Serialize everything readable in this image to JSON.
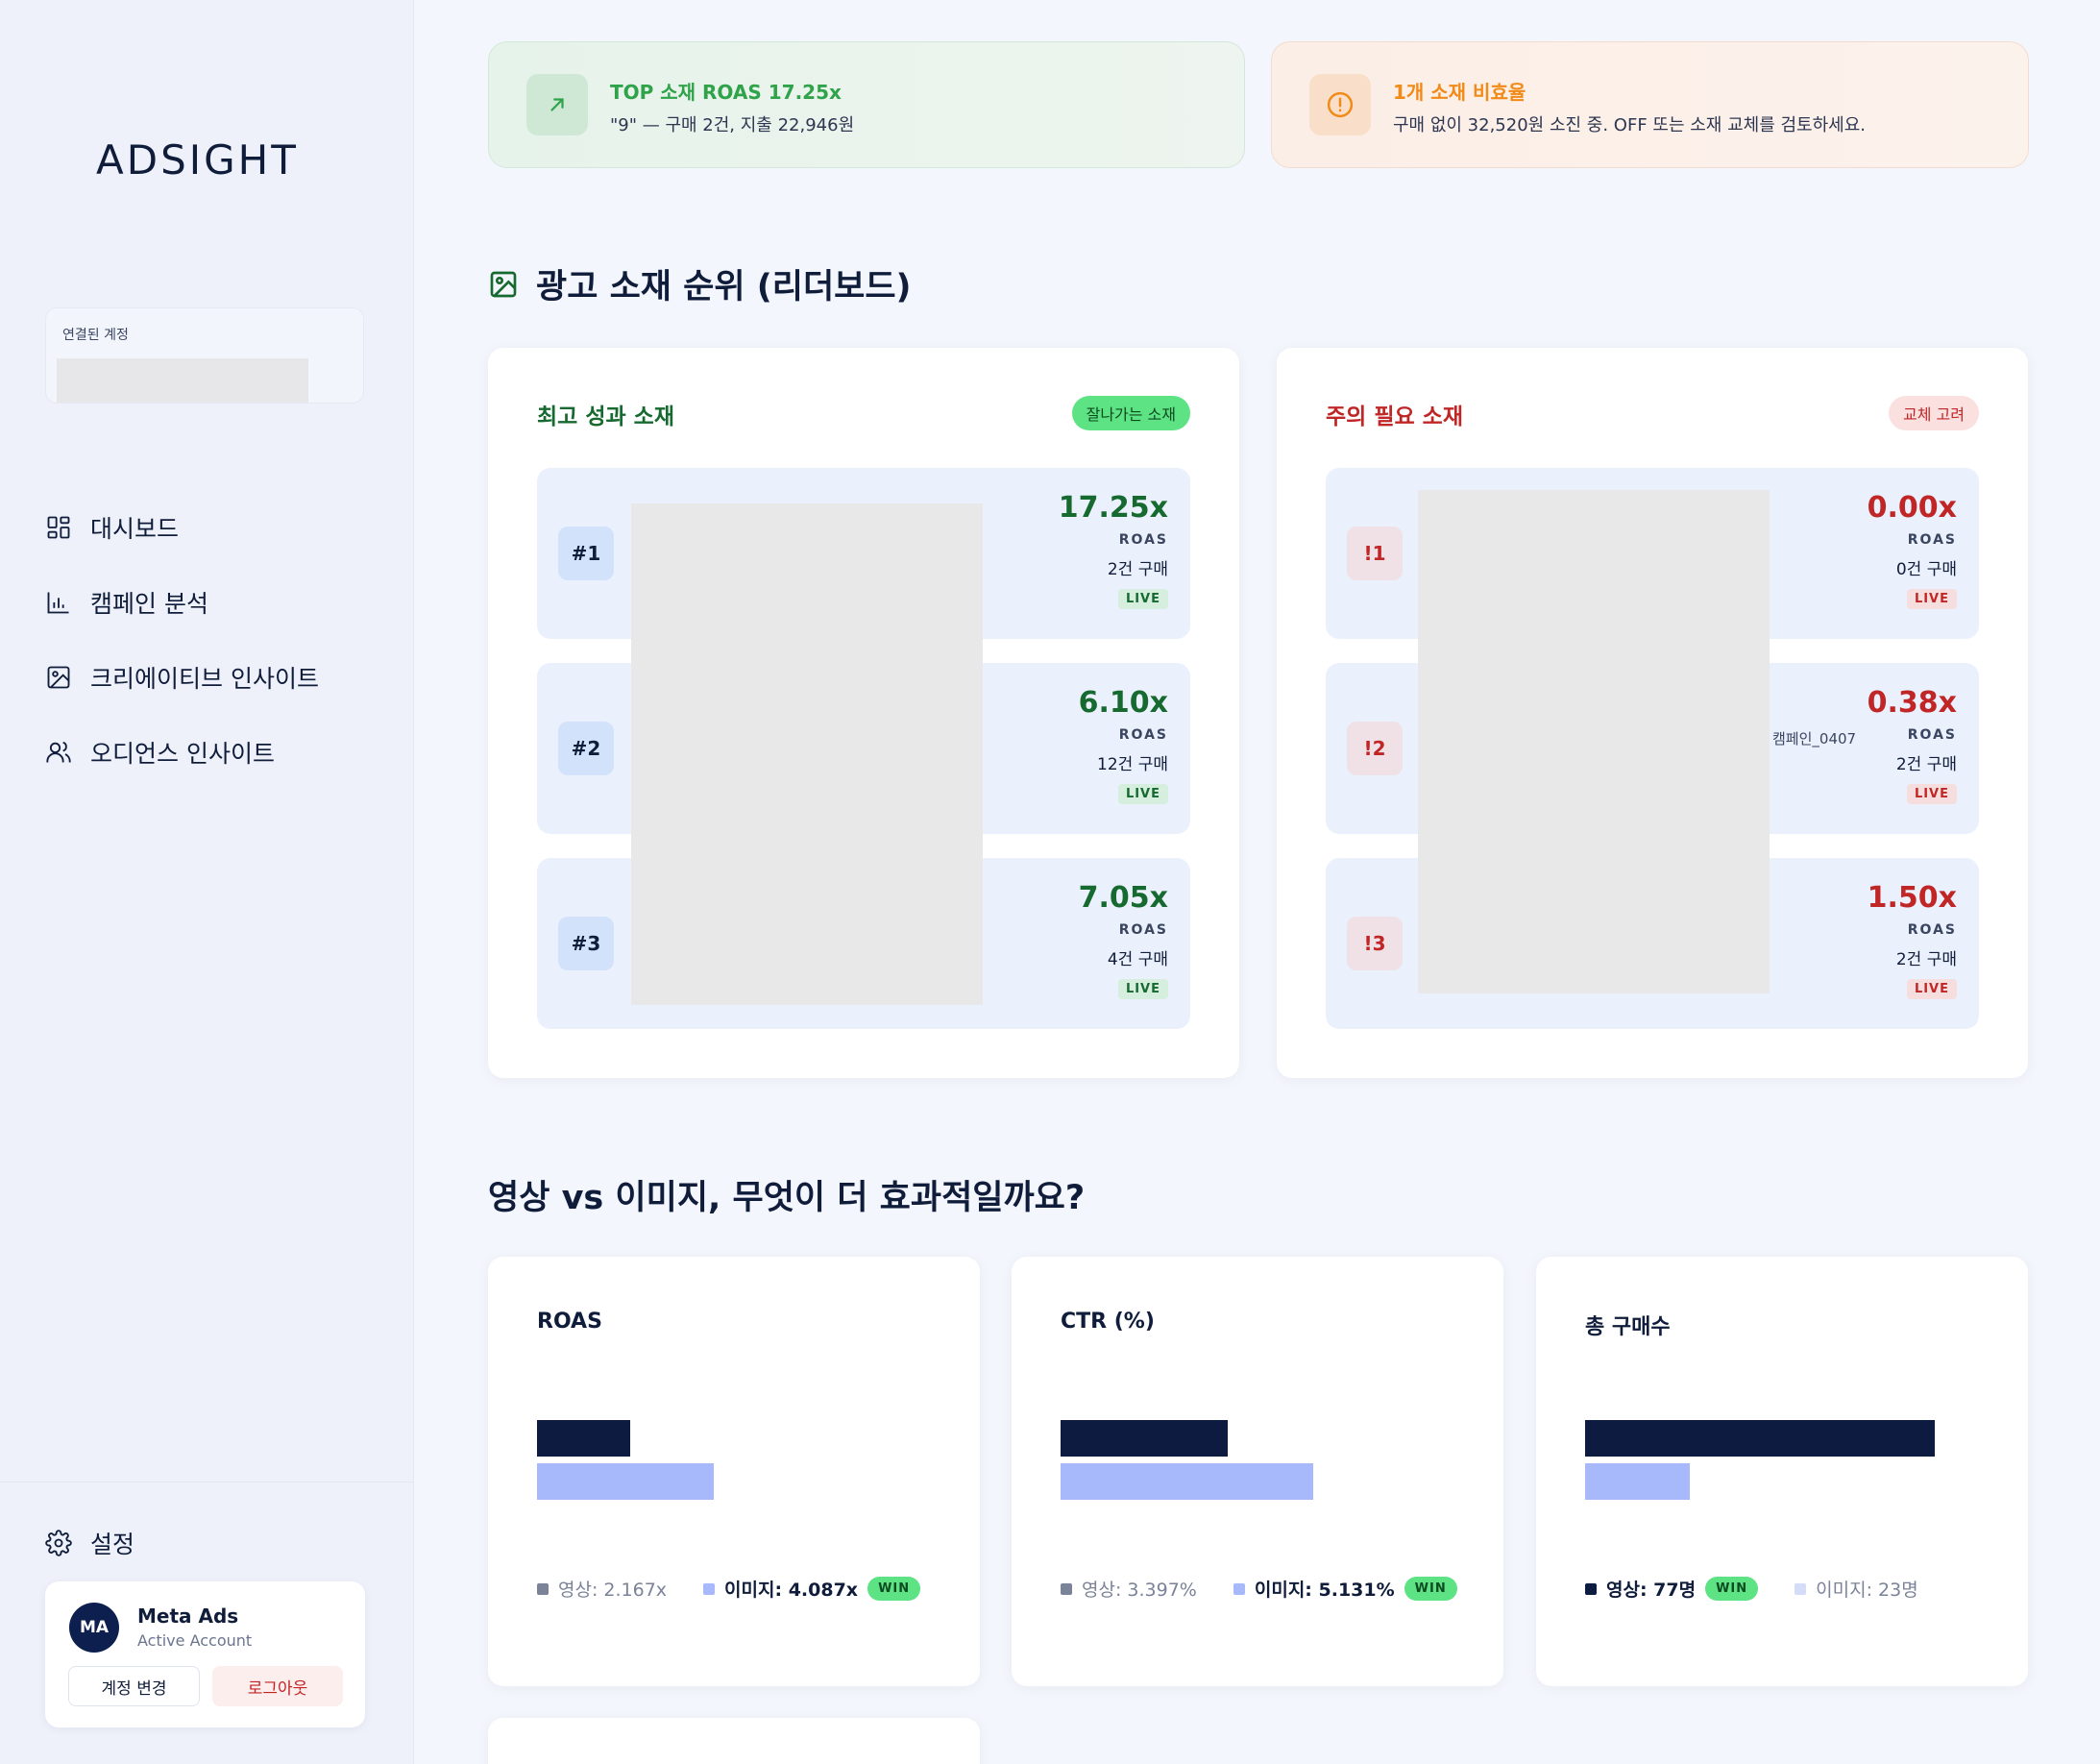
{
  "sidebar": {
    "logo": "ADSIGHT",
    "account_label": "연결된 계정",
    "nav": [
      {
        "icon": "dashboard-grid-icon",
        "label": "대시보드"
      },
      {
        "icon": "bar-chart-icon",
        "label": "캠페인 분석"
      },
      {
        "icon": "image-icon",
        "label": "크리에이티브 인사이트"
      },
      {
        "icon": "users-icon",
        "label": "오디언스 인사이트"
      }
    ],
    "settings_label": "설정",
    "user": {
      "initials": "MA",
      "name": "Meta Ads",
      "status": "Active Account",
      "switch_label": "계정 변경",
      "logout_label": "로그아웃"
    }
  },
  "alerts": {
    "top": {
      "title": "TOP 소재 ROAS 17.25x",
      "desc": "\"9\" — 구매 2건, 지출 22,946원"
    },
    "inefficient": {
      "title": "1개 소재 비효율",
      "desc": "구매 없이 32,520원 소진 중. OFF 또는 소재 교체를 검토하세요."
    }
  },
  "leaderboard": {
    "title": "광고 소재 순위 (리더보드)",
    "best": {
      "title": "최고 성과 소재",
      "badge": "잘나가는 소재",
      "rows": [
        {
          "rank": "#1",
          "roas": "17.25x",
          "label": "ROAS",
          "purchases": "2건 구매",
          "status": "LIVE"
        },
        {
          "rank": "#2",
          "roas": "6.10x",
          "label": "ROAS",
          "purchases": "12건 구매",
          "status": "LIVE"
        },
        {
          "rank": "#3",
          "roas": "7.05x",
          "label": "ROAS",
          "purchases": "4건 구매",
          "status": "LIVE"
        }
      ]
    },
    "worst": {
      "title": "주의 필요 소재",
      "badge": "교체 고려",
      "rows": [
        {
          "rank": "!1",
          "roas": "0.00x",
          "label": "ROAS",
          "purchases": "0건 구매",
          "status": "LIVE",
          "campaign": ""
        },
        {
          "rank": "!2",
          "roas": "0.38x",
          "label": "ROAS",
          "purchases": "2건 구매",
          "status": "LIVE",
          "campaign": "캠페인_0407"
        },
        {
          "rank": "!3",
          "roas": "1.50x",
          "label": "ROAS",
          "purchases": "2건 구매",
          "status": "LIVE",
          "campaign": ""
        }
      ]
    }
  },
  "compare": {
    "title": "영상 vs 이미지, 무엇이 더 효과적일까요?",
    "win_label": "WIN",
    "cards": [
      {
        "title": "ROAS",
        "video_value": 2.167,
        "image_value": 4.087,
        "video_text": "영상: 2.167x",
        "image_text": "이미지: 4.087x",
        "winner": "image"
      },
      {
        "title": "CTR (%)",
        "video_value": 3.397,
        "image_value": 5.131,
        "video_text": "영상: 3.397%",
        "image_text": "이미지: 5.131%",
        "winner": "image"
      },
      {
        "title": "총 구매수",
        "video_value": 77,
        "image_value": 23,
        "video_text": "영상: 77명",
        "image_text": "이미지: 23명",
        "winner": "video"
      }
    ]
  },
  "colors": {
    "video_bar": "#0c1b3f",
    "image_bar": "#a7b9fb",
    "good": "#16692f",
    "bad": "#c02626",
    "win_badge": "#5de383"
  }
}
